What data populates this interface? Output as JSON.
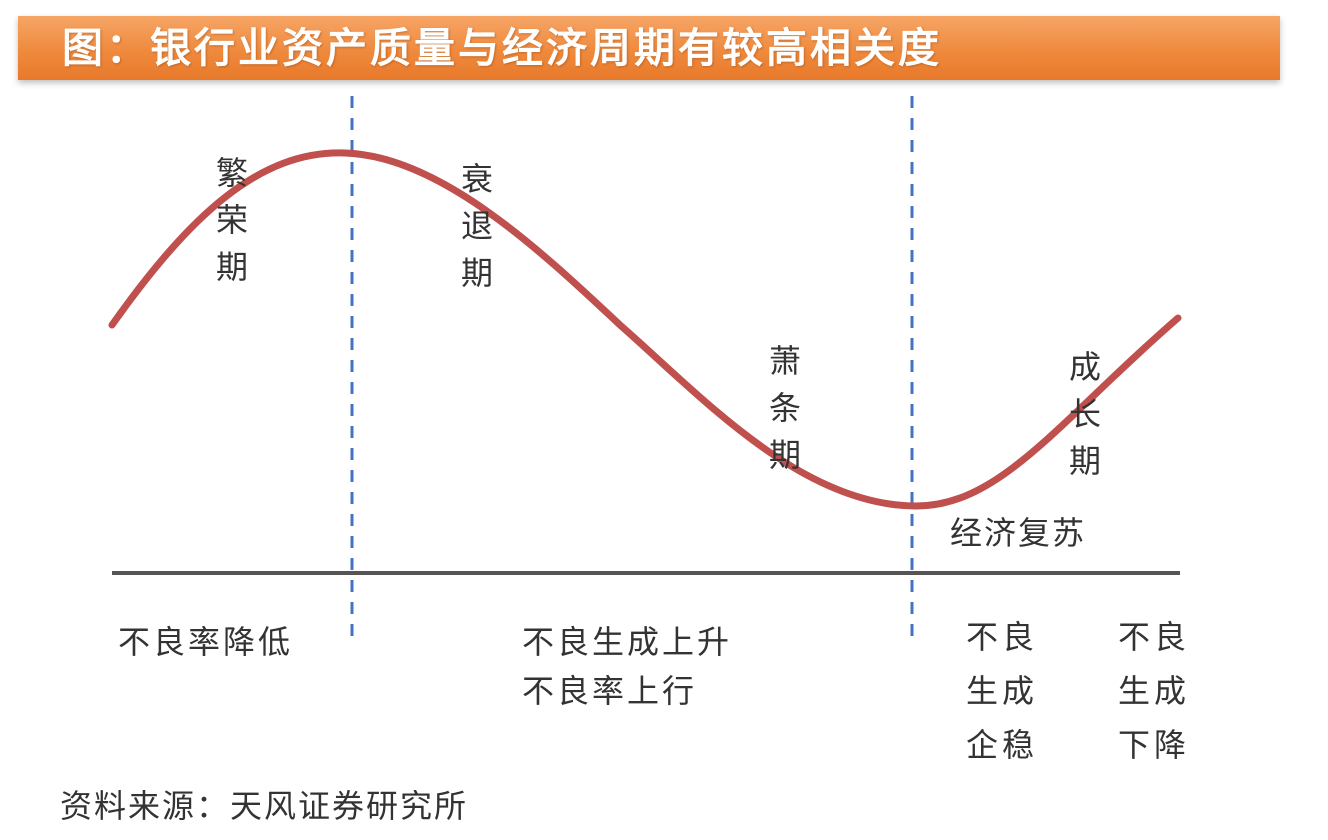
{
  "title": "图：银行业资产质量与经济周期有较高相关度",
  "phases": {
    "prosperity": "繁荣期",
    "recession": "衰退期",
    "depression": "萧条期",
    "growth": "成长期"
  },
  "recovery_label": "经济复苏",
  "npl_labels": {
    "prosperity": "不良率降低",
    "recession_line1": "不良生成上升",
    "recession_line2": "不良率上行",
    "recovery": "不良生成企稳",
    "growth": "不良生成下降"
  },
  "source": "资料来源：天风证券研究所",
  "colors": {
    "banner": "#ef8a3d",
    "curve": "#c0504d",
    "divider": "#4472c4",
    "baseline": "#555555"
  }
}
